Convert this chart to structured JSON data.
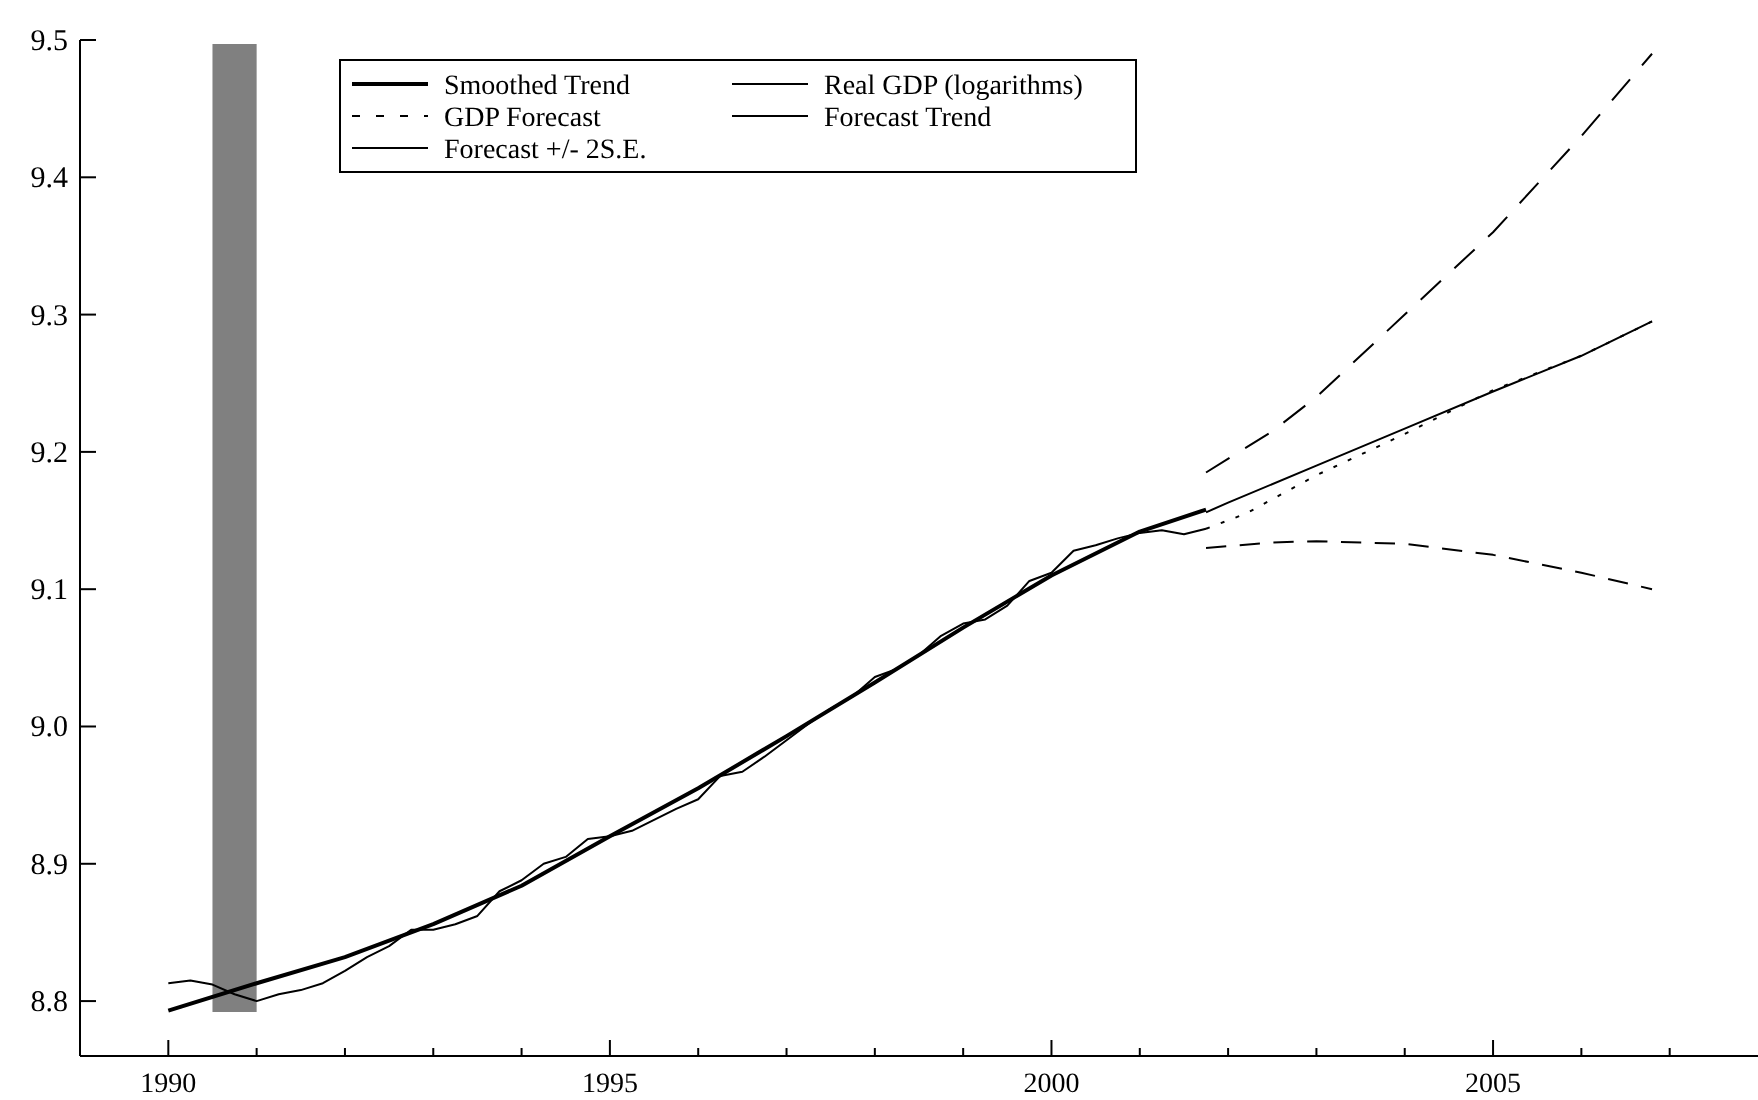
{
  "chart_data": {
    "type": "line",
    "series": [
      {
        "name": "Smoothed Trend",
        "color": "#000000",
        "line_style": "solid",
        "x": [
          1990,
          1991,
          1992,
          1993,
          1994,
          1995,
          1996,
          1997,
          1998,
          1999,
          2000,
          2001,
          2001.75
        ],
        "values": [
          8.793,
          8.813,
          8.832,
          8.856,
          8.884,
          8.92,
          8.955,
          8.993,
          9.032,
          9.072,
          9.11,
          9.142,
          9.158
        ]
      },
      {
        "name": "Real GDP (logarithms)",
        "color": "#000000",
        "line_style": "solid",
        "x": [
          1990,
          1990.25,
          1990.5,
          1990.75,
          1991,
          1991.25,
          1991.5,
          1991.75,
          1992,
          1992.25,
          1992.5,
          1992.75,
          1993,
          1993.25,
          1993.5,
          1993.75,
          1994,
          1994.25,
          1994.5,
          1994.75,
          1995,
          1995.25,
          1995.5,
          1995.75,
          1996,
          1996.25,
          1996.5,
          1996.75,
          1997,
          1997.25,
          1997.5,
          1997.75,
          1998,
          1998.25,
          1998.5,
          1998.75,
          1999,
          1999.25,
          1999.5,
          1999.75,
          2000,
          2000.25,
          2000.5,
          2000.75,
          2001,
          2001.25,
          2001.5,
          2001.75
        ],
        "values": [
          8.813,
          8.815,
          8.812,
          8.805,
          8.8,
          8.805,
          8.808,
          8.813,
          8.822,
          8.832,
          8.84,
          8.852,
          8.852,
          8.856,
          8.862,
          8.88,
          8.888,
          8.9,
          8.905,
          8.918,
          8.92,
          8.924,
          8.932,
          8.94,
          8.947,
          8.964,
          8.967,
          8.978,
          8.99,
          9.002,
          9.013,
          9.022,
          9.036,
          9.042,
          9.052,
          9.066,
          9.075,
          9.078,
          9.088,
          9.106,
          9.112,
          9.128,
          9.132,
          9.137,
          9.141,
          9.143,
          9.14,
          9.144
        ]
      },
      {
        "name": "GDP Forecast",
        "color": "#000000",
        "line_style": "dashed",
        "x": [
          2001.75,
          2002.2,
          2003,
          2004,
          2005,
          2006,
          2006.8
        ],
        "values": [
          9.144,
          9.155,
          9.183,
          9.213,
          9.245,
          9.27,
          9.295
        ]
      },
      {
        "name": "Forecast Trend",
        "color": "#000000",
        "line_style": "solid",
        "x": [
          2001.75,
          2002,
          2003,
          2004,
          2005,
          2006,
          2006.8
        ],
        "values": [
          9.156,
          9.163,
          9.19,
          9.217,
          9.244,
          9.27,
          9.295
        ]
      },
      {
        "name": "Forecast +/- 2S.E.",
        "color": "#000000",
        "line_style": "dashed",
        "x": [
          2001.75,
          2002.5,
          2003,
          2004,
          2005,
          2006,
          2006.8
        ],
        "values": [
          9.185,
          9.215,
          9.24,
          9.3,
          9.36,
          9.43,
          9.49
        ]
      },
      {
        "color": "#000000",
        "line_style": "dashed",
        "x": [
          2001.75,
          2002.5,
          2003,
          2004,
          2005,
          2006,
          2006.8
        ],
        "values": [
          9.13,
          9.134,
          9.135,
          9.133,
          9.125,
          9.112,
          9.1
        ]
      }
    ],
    "xlim": [
      1989,
      2008
    ],
    "xticks": [
      {
        "value": 1989,
        "label": null
      },
      1990,
      {
        "value": 1991,
        "label": null
      },
      {
        "value": 1992,
        "label": null
      },
      {
        "value": 1993,
        "label": null
      },
      {
        "value": 1994,
        "label": null
      },
      1995,
      {
        "value": 1996,
        "label": null
      },
      {
        "value": 1997,
        "label": null
      },
      {
        "value": 1998,
        "label": null
      },
      {
        "value": 1999,
        "label": null
      },
      2000,
      {
        "value": 2001,
        "label": null
      },
      {
        "value": 2002,
        "label": null
      },
      {
        "value": 2003,
        "label": null
      },
      {
        "value": 2004,
        "label": null
      },
      2005,
      {
        "value": 2006,
        "label": null
      },
      {
        "value": 2007,
        "label": null
      }
    ],
    "ylim": [
      8.76,
      9.5
    ],
    "yticks": [
      8.8,
      8.9,
      {
        "value": 9,
        "label": "9.0"
      },
      9.1,
      9.2,
      9.3,
      9.4,
      9.5
    ],
    "bands": [
      {
        "axis": "x",
        "from": 1990.5,
        "to": 1991,
        "color": "#808080"
      }
    ],
    "grid": false,
    "legend": "top"
  }
}
